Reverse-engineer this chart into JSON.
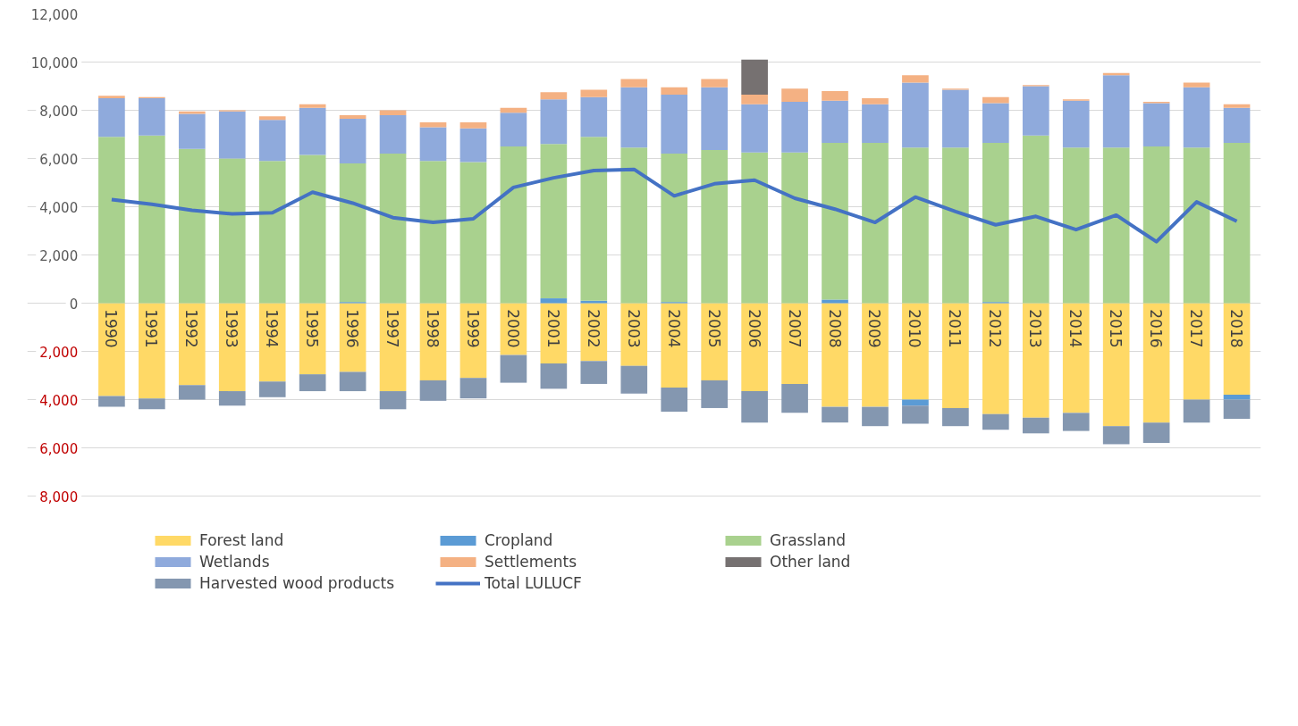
{
  "chart_data": {
    "type": "bar",
    "stacked": true,
    "categories": [
      "1990",
      "1991",
      "1992",
      "1993",
      "1994",
      "1995",
      "1996",
      "1997",
      "1998",
      "1999",
      "2000",
      "2001",
      "2002",
      "2003",
      "2004",
      "2005",
      "2006",
      "2007",
      "2008",
      "2009",
      "2010",
      "2011",
      "2012",
      "2013",
      "2014",
      "2015",
      "2016",
      "2017",
      "2018"
    ],
    "series": [
      {
        "name": "Forest land",
        "color": "#ffd966",
        "values": [
          -3850,
          -3950,
          -3400,
          -3650,
          -3250,
          -2950,
          -2850,
          -3650,
          -3200,
          -3100,
          -2150,
          -2500,
          -2400,
          -2600,
          -3500,
          -3200,
          -3650,
          -3350,
          -4300,
          -4300,
          -4000,
          -4350,
          -4600,
          -4750,
          -4550,
          -5100,
          -4950,
          -4000,
          -3800
        ]
      },
      {
        "name": "Cropland",
        "color": "#5b9bd5",
        "values": [
          0,
          0,
          0,
          0,
          0,
          0,
          50,
          0,
          0,
          0,
          0,
          200,
          100,
          0,
          50,
          0,
          0,
          0,
          150,
          0,
          -250,
          0,
          50,
          0,
          0,
          0,
          0,
          0,
          -200
        ]
      },
      {
        "name": "Grassland",
        "color": "#a9d18e",
        "values": [
          6900,
          6950,
          6400,
          6000,
          5900,
          6150,
          5750,
          6200,
          5900,
          5850,
          6500,
          6400,
          6800,
          6450,
          6150,
          6350,
          6250,
          6250,
          6500,
          6650,
          6450,
          6450,
          6600,
          6950,
          6450,
          6450,
          6500,
          6450,
          6650
        ]
      },
      {
        "name": "Wetlands",
        "color": "#8faadc",
        "values": [
          1600,
          1550,
          1450,
          1950,
          1700,
          1950,
          1850,
          1600,
          1400,
          1400,
          1400,
          1850,
          1650,
          2500,
          2450,
          2600,
          2000,
          2100,
          1750,
          1600,
          2700,
          2400,
          1650,
          2050,
          1950,
          3000,
          1800,
          2500,
          1450
        ]
      },
      {
        "name": "Settlements",
        "color": "#f4b183",
        "values": [
          100,
          50,
          100,
          50,
          150,
          150,
          150,
          200,
          200,
          250,
          200,
          300,
          300,
          350,
          300,
          350,
          400,
          550,
          400,
          250,
          300,
          50,
          250,
          50,
          50,
          100,
          50,
          200,
          150
        ]
      },
      {
        "name": "Other land",
        "color": "#767171",
        "values": [
          0,
          0,
          0,
          0,
          0,
          0,
          0,
          0,
          0,
          0,
          0,
          0,
          0,
          0,
          0,
          0,
          1450,
          0,
          0,
          0,
          0,
          0,
          0,
          0,
          0,
          0,
          0,
          0,
          0
        ]
      },
      {
        "name": "Harvested wood products",
        "color": "#8497b0",
        "values": [
          -450,
          -450,
          -600,
          -600,
          -650,
          -700,
          -800,
          -750,
          -850,
          -850,
          -1150,
          -1050,
          -950,
          -1150,
          -1000,
          -1150,
          -1300,
          -1200,
          -650,
          -800,
          -750,
          -750,
          -650,
          -650,
          -750,
          -750,
          -850,
          -950,
          -800
        ]
      },
      {
        "name": "Total LULUCF",
        "type": "line",
        "color": "#4472c4",
        "values": [
          4300,
          4100,
          3850,
          3700,
          3750,
          4600,
          4150,
          3550,
          3350,
          3500,
          4800,
          5200,
          5500,
          5550,
          4450,
          4950,
          5100,
          4350,
          3900,
          3350,
          4400,
          3800,
          3250,
          3600,
          3050,
          3650,
          2550,
          4200,
          3400
        ]
      }
    ],
    "ylim": [
      -8000,
      12000
    ],
    "yticks": [
      {
        "value": -8000,
        "label": "8,000"
      },
      {
        "value": -6000,
        "label": "6,000"
      },
      {
        "value": -4000,
        "label": "4,000"
      },
      {
        "value": -2000,
        "label": "2,000"
      },
      {
        "value": 0,
        "label": "0"
      },
      {
        "value": 2000,
        "label": "2,000"
      },
      {
        "value": 4000,
        "label": "4,000"
      },
      {
        "value": 6000,
        "label": "6,000"
      },
      {
        "value": 8000,
        "label": "8,000"
      },
      {
        "value": 10000,
        "label": "10,000"
      },
      {
        "value": 12000,
        "label": "12,000"
      }
    ],
    "grid": "y",
    "legend": "bottom",
    "marker": "none",
    "line_style": "solid"
  }
}
